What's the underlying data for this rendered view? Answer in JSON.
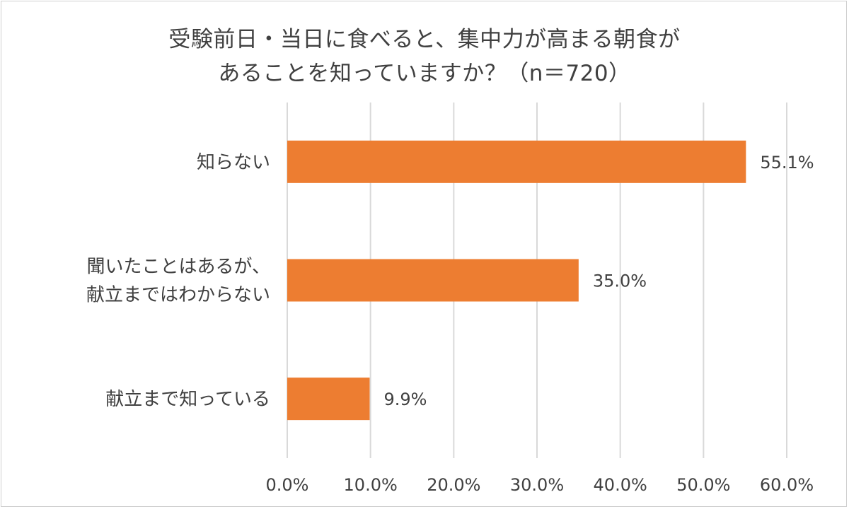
{
  "chart_data": {
    "type": "bar",
    "orientation": "horizontal",
    "title_lines": [
      "受験前日・当日に食べると、集中力が高まる朝食が",
      "あることを知っていますか？（n＝720）"
    ],
    "categories": [
      {
        "lines": [
          "知らない"
        ]
      },
      {
        "lines": [
          "聞いたことはあるが、",
          "献立まではわからない"
        ]
      },
      {
        "lines": [
          "献立まで知っている"
        ]
      }
    ],
    "values": [
      55.1,
      35.0,
      9.9
    ],
    "value_labels": [
      "55.1%",
      "35.0%",
      "9.9%"
    ],
    "xlim": [
      0,
      60
    ],
    "ticks": [
      0,
      10,
      20,
      30,
      40,
      50,
      60
    ],
    "tick_labels": [
      "0.0%",
      "10.0%",
      "20.0%",
      "30.0%",
      "40.0%",
      "50.0%",
      "60.0%"
    ],
    "bar_color": "#ED7D31",
    "grid": true,
    "legend": "none"
  }
}
